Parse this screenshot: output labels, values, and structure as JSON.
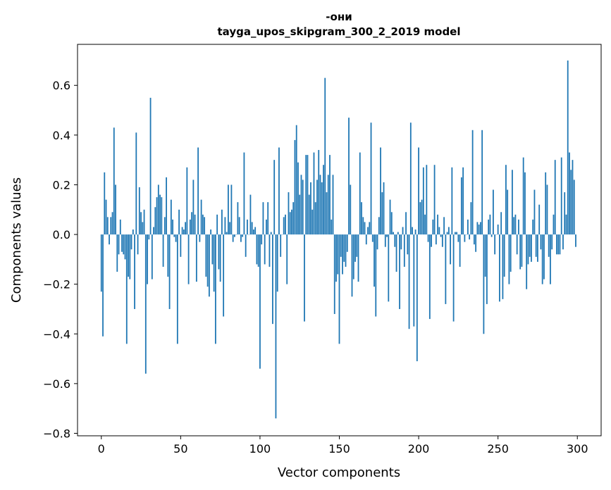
{
  "chart_data": {
    "type": "bar",
    "title": "-они",
    "subtitle": "tayga_upos_skipgram_300_2_2019 model",
    "xlabel": "Vector components",
    "ylabel": "Components values",
    "xlim": [
      -15,
      315
    ],
    "ylim": [
      -0.81,
      0.765
    ],
    "xticks": [
      0,
      50,
      100,
      150,
      200,
      250,
      300
    ],
    "xtick_labels": [
      "0",
      "50",
      "100",
      "150",
      "200",
      "250",
      "300"
    ],
    "yticks": [
      -0.8,
      -0.6,
      -0.4,
      -0.2,
      0.0,
      0.2,
      0.4,
      0.6
    ],
    "ytick_labels": [
      "−0.8",
      "−0.6",
      "−0.4",
      "−0.2",
      "0.0",
      "0.2",
      "0.4",
      "0.6"
    ],
    "bar_color": "#1f77b4",
    "grid": false,
    "x": "0..299",
    "values": [
      -0.23,
      -0.41,
      0.25,
      0.14,
      0.07,
      -0.04,
      0.07,
      0.09,
      0.43,
      0.2,
      -0.15,
      -0.08,
      0.06,
      -0.07,
      -0.08,
      -0.1,
      -0.44,
      -0.17,
      -0.18,
      -0.06,
      0.02,
      -0.3,
      0.41,
      -0.08,
      0.19,
      0.09,
      0.05,
      0.1,
      -0.56,
      -0.2,
      -0.02,
      0.55,
      -0.18,
      0.03,
      0.11,
      0.15,
      0.2,
      0.16,
      0.15,
      -0.13,
      0.07,
      0.23,
      -0.17,
      -0.3,
      0.14,
      0.06,
      -0.01,
      -0.03,
      -0.44,
      0.1,
      -0.09,
      0.03,
      0.02,
      0.05,
      0.27,
      -0.2,
      0.06,
      0.09,
      0.22,
      0.08,
      -0.19,
      0.35,
      -0.03,
      0.14,
      0.08,
      0.07,
      -0.17,
      -0.21,
      -0.25,
      0.02,
      -0.12,
      -0.23,
      -0.44,
      0.08,
      -0.14,
      -0.19,
      0.1,
      -0.33,
      0.07,
      0.01,
      0.2,
      0.05,
      0.2,
      -0.03,
      -0.01,
      0.0,
      0.13,
      0.07,
      -0.03,
      -0.01,
      0.33,
      -0.09,
      0.06,
      0.0,
      0.16,
      0.05,
      0.02,
      0.03,
      -0.12,
      -0.13,
      -0.54,
      -0.04,
      0.13,
      -0.12,
      0.06,
      0.13,
      -0.13,
      0.01,
      -0.36,
      0.3,
      -0.74,
      -0.23,
      0.35,
      -0.09,
      0.0,
      0.07,
      0.08,
      -0.2,
      0.17,
      0.09,
      0.1,
      0.13,
      0.38,
      0.44,
      0.29,
      0.16,
      0.24,
      0.22,
      -0.35,
      0.32,
      0.32,
      0.16,
      0.21,
      0.1,
      0.33,
      0.13,
      0.22,
      0.34,
      0.24,
      0.21,
      0.28,
      0.63,
      0.17,
      0.24,
      0.32,
      0.06,
      0.24,
      -0.32,
      -0.19,
      -0.16,
      -0.44,
      -0.09,
      -0.16,
      -0.11,
      -0.13,
      -0.07,
      0.47,
      0.2,
      -0.25,
      -0.18,
      -0.11,
      -0.09,
      -0.19,
      0.33,
      0.13,
      0.07,
      0.05,
      -0.04,
      0.03,
      0.05,
      0.45,
      -0.03,
      -0.21,
      -0.33,
      -0.06,
      0.07,
      0.35,
      0.17,
      0.21,
      -0.05,
      -0.01,
      -0.27,
      0.14,
      0.09,
      0.01,
      -0.05,
      -0.15,
      0.01,
      -0.3,
      -0.06,
      0.03,
      -0.13,
      0.09,
      -0.08,
      -0.38,
      0.45,
      0.03,
      -0.37,
      0.02,
      -0.51,
      0.35,
      0.13,
      0.14,
      0.27,
      0.08,
      0.28,
      -0.03,
      -0.34,
      -0.05,
      0.06,
      0.28,
      -0.04,
      0.08,
      0.03,
      -0.01,
      -0.05,
      0.07,
      -0.28,
      0.01,
      0.03,
      -0.12,
      0.27,
      -0.35,
      0.01,
      0.01,
      -0.03,
      -0.13,
      0.23,
      0.27,
      -0.03,
      0.0,
      0.06,
      -0.02,
      0.13,
      0.42,
      -0.04,
      -0.07,
      0.05,
      0.04,
      0.05,
      0.42,
      -0.4,
      -0.17,
      -0.28,
      0.06,
      0.08,
      -0.01,
      0.18,
      -0.08,
      0.0,
      0.04,
      -0.27,
      0.09,
      -0.26,
      -0.17,
      0.28,
      0.18,
      -0.2,
      -0.15,
      0.26,
      0.07,
      0.08,
      -0.08,
      0.06,
      -0.14,
      -0.13,
      0.31,
      0.25,
      -0.22,
      -0.12,
      -0.09,
      -0.11,
      0.06,
      0.18,
      -0.09,
      -0.11,
      0.12,
      -0.06,
      -0.2,
      -0.18,
      0.25,
      0.2,
      -0.09,
      -0.2,
      -0.06,
      0.08,
      0.3,
      -0.08,
      -0.08,
      -0.08,
      0.31,
      -0.06,
      0.17,
      0.08,
      0.7,
      0.33,
      0.26,
      0.3,
      0.22,
      -0.05
    ]
  }
}
